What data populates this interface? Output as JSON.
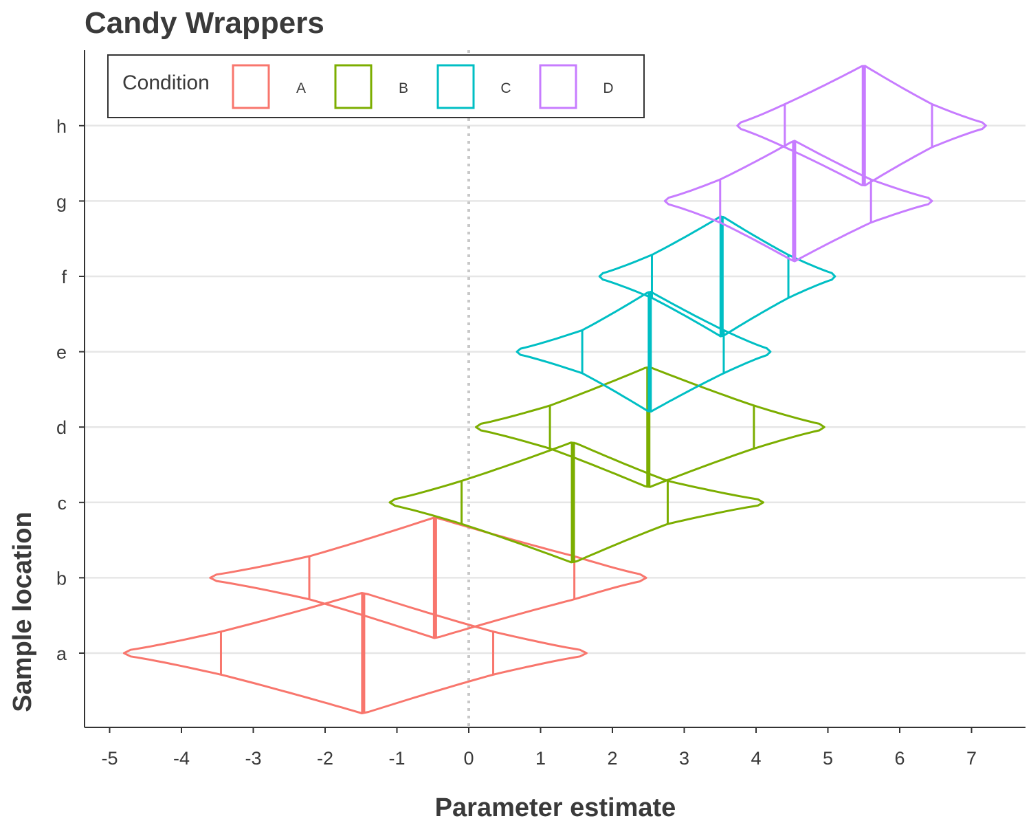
{
  "chart_data": {
    "type": "violin",
    "title": "Candy Wrappers",
    "xlabel": "Parameter estimate",
    "ylabel": "Sample location",
    "xlim": [
      -5.4,
      7.8
    ],
    "x_ticks": [
      -5,
      -4,
      -3,
      -2,
      -1,
      0,
      1,
      2,
      3,
      4,
      5,
      6,
      7
    ],
    "categories": [
      "a",
      "b",
      "c",
      "d",
      "e",
      "f",
      "g",
      "h"
    ],
    "reference_line_x": 0,
    "grid": "horizontal",
    "legend": {
      "title": "Condition",
      "position": "top-left",
      "entries": [
        {
          "label": "A",
          "color": "#F8766D"
        },
        {
          "label": "B",
          "color": "#7CAE00"
        },
        {
          "label": "C",
          "color": "#00BFC4"
        },
        {
          "label": "D",
          "color": "#C77CFF"
        }
      ]
    },
    "series": [
      {
        "category": "a",
        "condition": "A",
        "min": -4.8,
        "q1": -3.45,
        "median": -1.47,
        "q3": 0.34,
        "max": 1.64
      },
      {
        "category": "b",
        "condition": "A",
        "min": -3.6,
        "q1": -2.22,
        "median": -0.47,
        "q3": 1.47,
        "max": 2.47
      },
      {
        "category": "c",
        "condition": "B",
        "min": -1.1,
        "q1": -0.1,
        "median": 1.45,
        "q3": 2.77,
        "max": 4.1
      },
      {
        "category": "d",
        "condition": "B",
        "min": 0.1,
        "q1": 1.13,
        "median": 2.5,
        "q3": 3.97,
        "max": 4.95
      },
      {
        "category": "e",
        "condition": "C",
        "min": 0.67,
        "q1": 1.58,
        "median": 2.52,
        "q3": 3.55,
        "max": 4.2
      },
      {
        "category": "f",
        "condition": "C",
        "min": 1.82,
        "q1": 2.55,
        "median": 3.52,
        "q3": 4.45,
        "max": 5.1
      },
      {
        "category": "g",
        "condition": "D",
        "min": 2.73,
        "q1": 3.5,
        "median": 4.53,
        "q3": 5.6,
        "max": 6.45
      },
      {
        "category": "h",
        "condition": "D",
        "min": 3.74,
        "q1": 4.4,
        "median": 5.5,
        "q3": 6.45,
        "max": 7.2
      }
    ]
  }
}
